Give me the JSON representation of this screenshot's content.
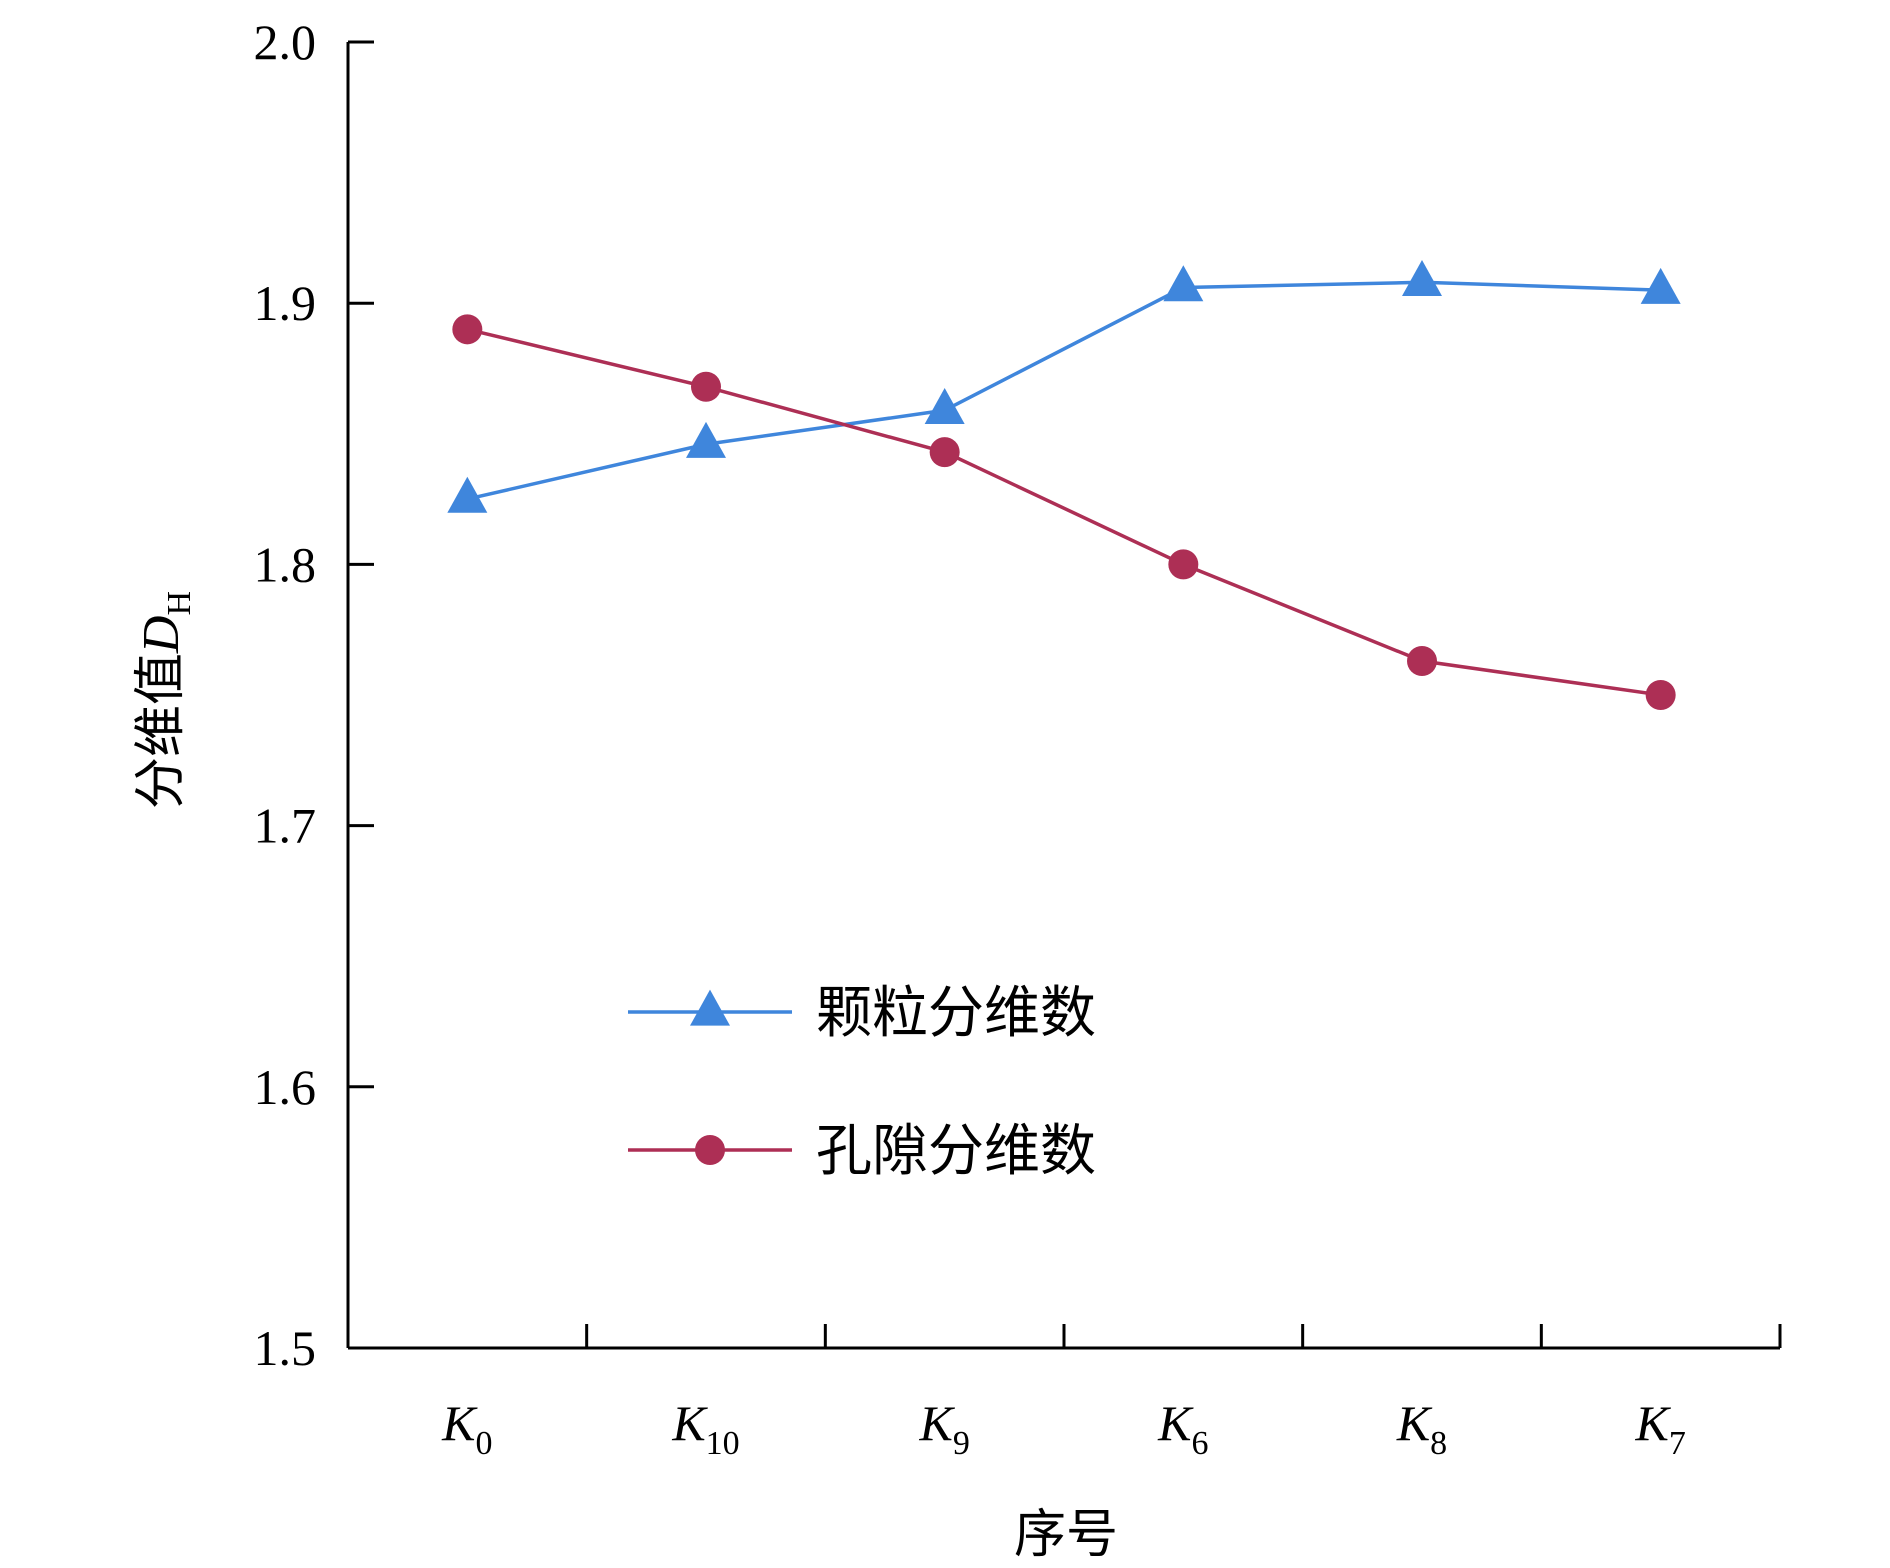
{
  "chart_data": {
    "type": "line",
    "title": "",
    "xlabel": "序号",
    "ylabel": {
      "main": "分维值",
      "var": "D",
      "sub": "H"
    },
    "ylim": [
      1.5,
      2.0
    ],
    "yticks": [
      "1.5",
      "1.6",
      "1.7",
      "1.8",
      "1.9",
      "2.0"
    ],
    "categories": [
      {
        "main": "K",
        "sub": "0"
      },
      {
        "main": "K",
        "sub": "10"
      },
      {
        "main": "K",
        "sub": "9"
      },
      {
        "main": "K",
        "sub": "6"
      },
      {
        "main": "K",
        "sub": "8"
      },
      {
        "main": "K",
        "sub": "7"
      }
    ],
    "grid": false,
    "legend_position": "center",
    "series": [
      {
        "name": "颗粒分维数",
        "color": "#3f86dc",
        "marker": "triangle",
        "values": [
          1.825,
          1.846,
          1.859,
          1.906,
          1.908,
          1.905
        ]
      },
      {
        "name": "孔隙分维数",
        "color": "#ad2f55",
        "marker": "circle",
        "values": [
          1.89,
          1.868,
          1.843,
          1.8,
          1.763,
          1.75
        ]
      }
    ]
  }
}
